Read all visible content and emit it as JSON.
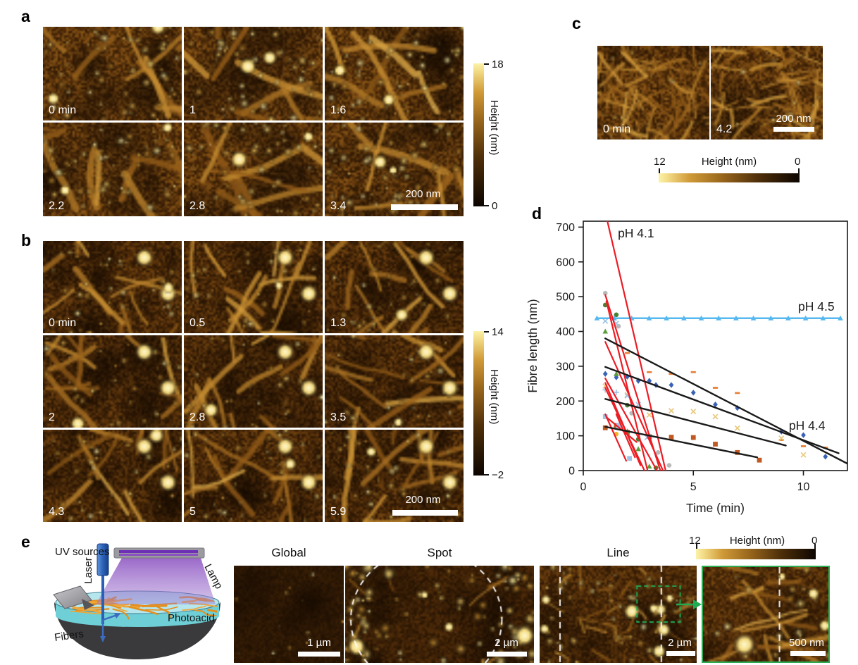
{
  "figure": {
    "panel_a": {
      "letter": "a",
      "frame_labels": [
        "0 min",
        "1",
        "1.6",
        "2.2",
        "2.8",
        "3.4"
      ],
      "scale_bar": "200 nm",
      "colorbar": {
        "max": "18",
        "min": "0",
        "label": "Height (nm)"
      }
    },
    "panel_b": {
      "letter": "b",
      "frame_labels": [
        "0 min",
        "0.5",
        "1.3",
        "2",
        "2.8",
        "3.5",
        "4.3",
        "5",
        "5.9"
      ],
      "scale_bar": "200 nm",
      "colorbar": {
        "max": "14",
        "min": "−2",
        "label": "Height (nm)"
      }
    },
    "panel_c": {
      "letter": "c",
      "frame_labels": [
        "0 min",
        "4.2"
      ],
      "scale_bar": "200 nm",
      "colorbar": {
        "max": "12",
        "min": "0",
        "label": "Height (nm)"
      }
    },
    "panel_d": {
      "letter": "d"
    },
    "panel_e": {
      "letter": "e",
      "diagram_labels": {
        "uv_sources": "UV sources",
        "laser": "Laser",
        "lamp": "Lamp",
        "photoacid": "Photoacid",
        "fibers": "Fibers"
      },
      "image_titles": [
        "Global",
        "Spot",
        "Line"
      ],
      "scale_bars": [
        "1 µm",
        "2 µm",
        "2 µm",
        "500 nm"
      ],
      "colorbar": {
        "max": "12",
        "min": "0",
        "label": "Height (nm)"
      }
    }
  },
  "chart_data": {
    "type": "scatter",
    "title": "",
    "xlabel": "Time (min)",
    "ylabel": "Fibre length (nm)",
    "xlim": [
      0,
      12
    ],
    "ylim": [
      0,
      717
    ],
    "xticks": [
      0,
      5,
      10
    ],
    "yticks": [
      0,
      100,
      200,
      300,
      400,
      500,
      600,
      700
    ],
    "grid": false,
    "annotations": [
      {
        "text": "pH 4.1",
        "x": 1.57,
        "y": 670
      },
      {
        "text": "pH 4.5",
        "x": 9.76,
        "y": 460
      },
      {
        "text": "pH 4.4",
        "x": 9.34,
        "y": 117
      }
    ],
    "fit_lines": [
      {
        "group": "pH 4.5",
        "color": "#55b8ef",
        "width": 2.6,
        "marker": "triangle",
        "n_markers": 15,
        "segments": [
          [
            [
              0.62,
              438
            ],
            [
              11.68,
              438
            ]
          ]
        ]
      },
      {
        "group": "pH 4.1",
        "color": "#ec1c24",
        "width": 2.2,
        "segments": [
          [
            [
              0.9,
              770
            ],
            [
              3.74,
              0
            ]
          ],
          [
            [
              1.0,
              505
            ],
            [
              3.5,
              0
            ]
          ],
          [
            [
              1.05,
              487
            ],
            [
              2.92,
              0
            ]
          ],
          [
            [
              1.0,
              370
            ],
            [
              3.62,
              0
            ]
          ],
          [
            [
              1.0,
              265
            ],
            [
              3.35,
              0
            ]
          ],
          [
            [
              1.0,
              252
            ],
            [
              2.6,
              15
            ]
          ],
          [
            [
              1.0,
              238
            ],
            [
              2.78,
              0
            ]
          ],
          [
            [
              1.0,
              162
            ],
            [
              1.95,
              28
            ]
          ],
          [
            [
              1.08,
              152
            ],
            [
              2.42,
              82
            ]
          ],
          [
            [
              1.5,
              162
            ],
            [
              2.35,
              38
            ]
          ]
        ]
      },
      {
        "group": "pH 4.4",
        "color": "#1a1a1a",
        "width": 2.4,
        "segments": [
          [
            [
              1,
              380
            ],
            [
              12,
              20
            ]
          ],
          [
            [
              1,
              298
            ],
            [
              11.6,
              50
            ]
          ],
          [
            [
              1,
              206
            ],
            [
              9.2,
              72
            ]
          ],
          [
            [
              1,
              126
            ],
            [
              7.9,
              38
            ]
          ]
        ]
      }
    ],
    "scatter_series": [
      {
        "marker": "diamond",
        "color": "#3a62b5",
        "points": [
          [
            1,
            278
          ],
          [
            1.5,
            268
          ],
          [
            2,
            270
          ],
          [
            2.5,
            258
          ],
          [
            3,
            258
          ],
          [
            3.3,
            246
          ],
          [
            4,
            246
          ],
          [
            5,
            224
          ],
          [
            6,
            190
          ],
          [
            7,
            180
          ],
          [
            9,
            112
          ],
          [
            10,
            102
          ],
          [
            11,
            40
          ]
        ]
      },
      {
        "marker": "dash",
        "color": "#e8833a",
        "points": [
          [
            2,
            338
          ],
          [
            3,
            283
          ],
          [
            4,
            278
          ],
          [
            5,
            283
          ],
          [
            6,
            238
          ],
          [
            7,
            223
          ],
          [
            9,
            88
          ],
          [
            10,
            70
          ],
          [
            11,
            66
          ]
        ]
      },
      {
        "marker": "square",
        "color": "#c05a22",
        "points": [
          [
            1,
            123
          ],
          [
            1.5,
            130
          ],
          [
            2,
            110
          ],
          [
            3,
            98
          ],
          [
            4,
            96
          ],
          [
            5,
            95
          ],
          [
            6,
            76
          ],
          [
            7,
            52
          ],
          [
            8,
            30
          ]
        ]
      },
      {
        "marker": "x",
        "color": "#e9c87d",
        "points": [
          [
            1,
            243
          ],
          [
            2,
            218
          ],
          [
            3,
            160
          ],
          [
            4,
            172
          ],
          [
            5,
            170
          ],
          [
            6,
            155
          ],
          [
            7,
            122
          ],
          [
            9,
            93
          ],
          [
            10,
            45
          ]
        ]
      },
      {
        "marker": "circle",
        "color": "#4b8032",
        "points": [
          [
            1,
            476
          ],
          [
            1.5,
            448
          ],
          [
            2,
            188
          ],
          [
            2.5,
            90
          ],
          [
            3.3,
            8
          ]
        ]
      },
      {
        "marker": "triangle",
        "color": "#5a9e3c",
        "points": [
          [
            1,
            400
          ],
          [
            1.5,
            278
          ],
          [
            2,
            113
          ],
          [
            2.5,
            62
          ],
          [
            3,
            12
          ]
        ]
      },
      {
        "marker": "circle",
        "color": "#b9b9b9",
        "points": [
          [
            1,
            510
          ],
          [
            1.6,
            415
          ],
          [
            2.2,
            165
          ],
          [
            3,
            100
          ],
          [
            3.4,
            52
          ],
          [
            3.9,
            15
          ]
        ]
      },
      {
        "marker": "x",
        "color": "#9dc3e6",
        "points": [
          [
            1,
            430
          ],
          [
            1.5,
            423
          ],
          [
            2,
            215
          ],
          [
            2.5,
            190
          ],
          [
            2.9,
            95
          ]
        ]
      },
      {
        "marker": "plus",
        "color": "#9dc3e6",
        "points": [
          [
            1,
            232
          ],
          [
            1.5,
            225
          ]
        ]
      },
      {
        "marker": "square",
        "color": "#9dc3e6",
        "points": [
          [
            1,
            155
          ],
          [
            1.6,
            130
          ],
          [
            2.1,
            35
          ]
        ]
      },
      {
        "marker": "circle",
        "color": "#f0b429",
        "points": [
          [
            1.5,
            105
          ]
        ]
      }
    ]
  }
}
